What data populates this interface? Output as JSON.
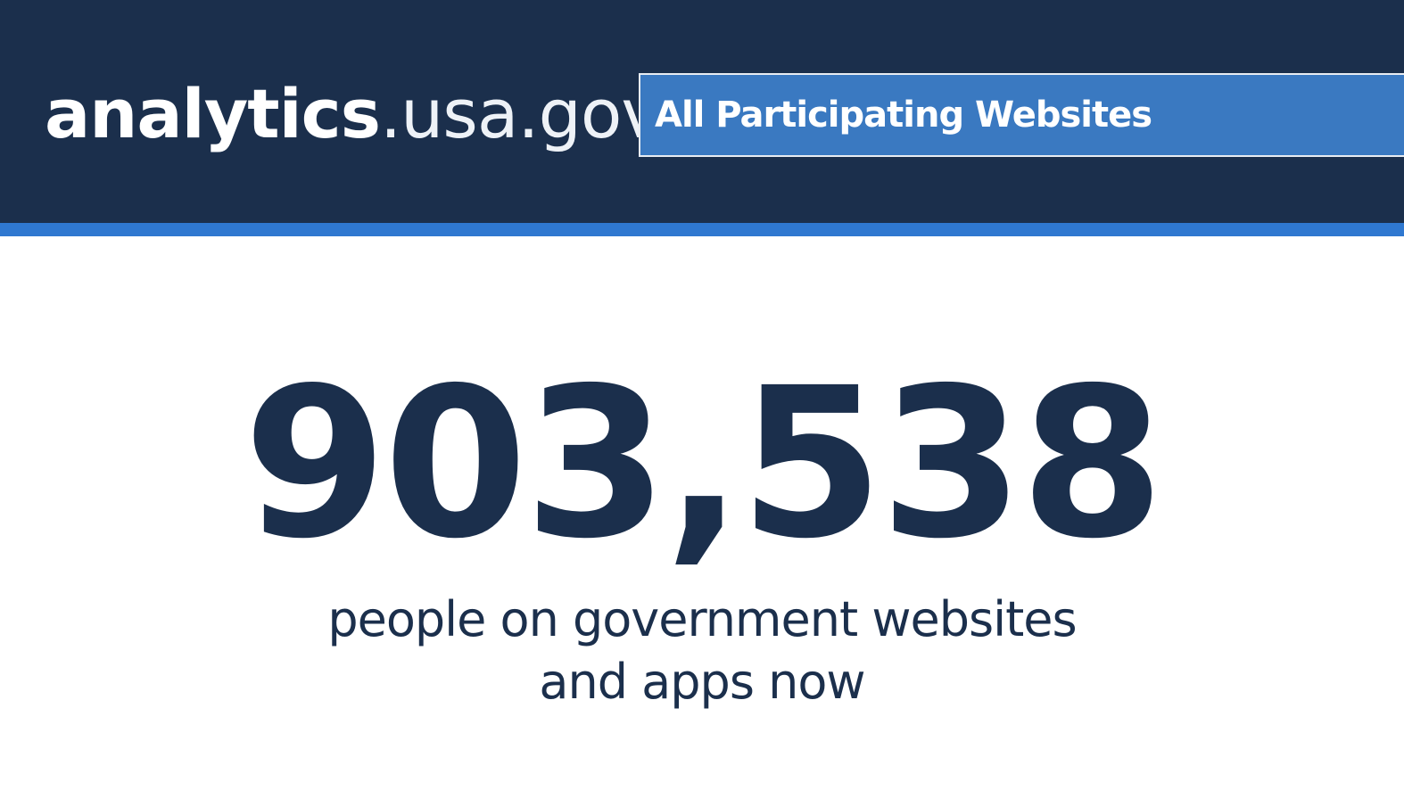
{
  "header": {
    "logo_strong": "analytics",
    "logo_light": ".usa.gov",
    "site_selector": {
      "selected": "All Participating Websites"
    }
  },
  "hero": {
    "realtime_count": "903,538",
    "caption": "people on government websites and apps now"
  },
  "colors": {
    "header_bg": "#1b2f4c",
    "header_stripe": "#2f78d0",
    "selector_bg": "#3a79c1",
    "text_dark": "#1b2f4c"
  }
}
